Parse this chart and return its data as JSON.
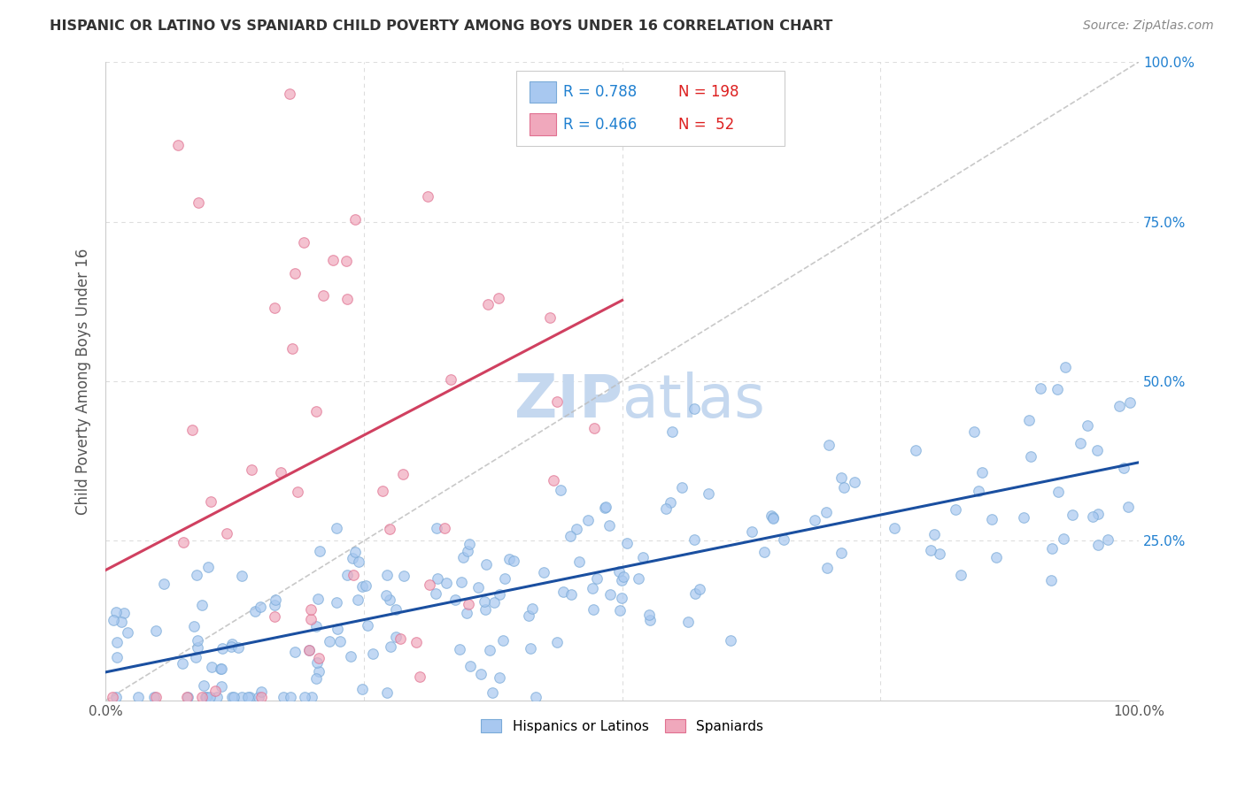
{
  "title": "HISPANIC OR LATINO VS SPANIARD CHILD POVERTY AMONG BOYS UNDER 16 CORRELATION CHART",
  "source": "Source: ZipAtlas.com",
  "ylabel": "Child Poverty Among Boys Under 16",
  "series1_label": "Hispanics or Latinos",
  "series2_label": "Spaniards",
  "series1_face_color": "#a8c8f0",
  "series2_face_color": "#f0a8bc",
  "series1_edge_color": "#7aaad8",
  "series2_edge_color": "#e07090",
  "series1_line_color": "#1a4fa0",
  "series2_line_color": "#d04060",
  "series1_R": 0.788,
  "series1_N": 198,
  "series2_R": 0.466,
  "series2_N": 52,
  "legend_R_color": "#2080d0",
  "legend_N_color": "#dd2020",
  "background_color": "#ffffff",
  "grid_color": "#dddddd",
  "watermark_zip_color": "#c5d8ef",
  "watermark_atlas_color": "#c5d8ef",
  "ref_line_color": "#bbbbbb",
  "title_color": "#333333",
  "source_color": "#888888",
  "ylabel_color": "#555555",
  "xtick_color": "#555555",
  "ytick_right_color": "#2080d0"
}
